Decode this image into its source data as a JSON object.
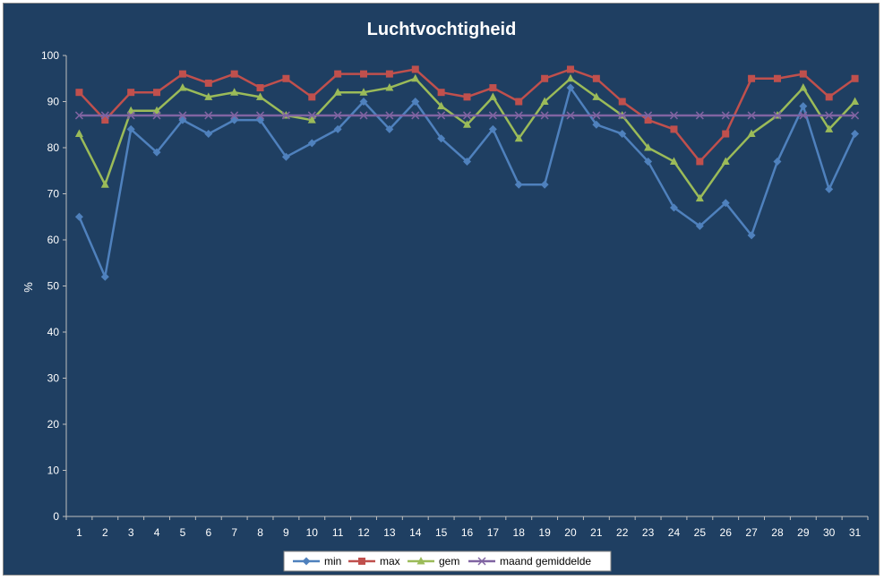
{
  "chart_data": {
    "type": "line",
    "title": "Luchtvochtigheid",
    "xlabel": "",
    "ylabel": "%",
    "ylim": [
      0,
      100
    ],
    "yticks": [
      0,
      10,
      20,
      30,
      40,
      50,
      60,
      70,
      80,
      90,
      100
    ],
    "categories": [
      "1",
      "2",
      "3",
      "4",
      "5",
      "6",
      "7",
      "8",
      "9",
      "10",
      "11",
      "12",
      "13",
      "14",
      "15",
      "16",
      "17",
      "18",
      "19",
      "20",
      "21",
      "22",
      "23",
      "24",
      "25",
      "26",
      "27",
      "28",
      "29",
      "30",
      "31"
    ],
    "legend_position": "bottom",
    "grid": false,
    "background_color": "#1f3f62",
    "series": [
      {
        "name": "min",
        "color": "#4f81bd",
        "marker": "diamond",
        "values": [
          65,
          52,
          84,
          79,
          86,
          83,
          86,
          86,
          78,
          81,
          84,
          90,
          84,
          90,
          82,
          77,
          84,
          72,
          72,
          93,
          85,
          83,
          77,
          67,
          63,
          68,
          61,
          77,
          89,
          71,
          83
        ]
      },
      {
        "name": "max",
        "color": "#c0504d",
        "marker": "square",
        "values": [
          92,
          86,
          92,
          92,
          96,
          94,
          96,
          93,
          95,
          91,
          96,
          96,
          96,
          97,
          92,
          91,
          93,
          90,
          95,
          97,
          95,
          90,
          86,
          84,
          77,
          83,
          95,
          95,
          96,
          91,
          95
        ]
      },
      {
        "name": "gem",
        "color": "#9bbb59",
        "marker": "triangle",
        "values": [
          83,
          72,
          88,
          88,
          93,
          91,
          92,
          91,
          87,
          86,
          92,
          92,
          93,
          95,
          89,
          85,
          91,
          82,
          90,
          95,
          91,
          87,
          80,
          77,
          69,
          77,
          83,
          87,
          93,
          84,
          90
        ]
      },
      {
        "name": "maand gemiddelde",
        "color": "#8064a2",
        "marker": "x",
        "values": [
          87,
          87,
          87,
          87,
          87,
          87,
          87,
          87,
          87,
          87,
          87,
          87,
          87,
          87,
          87,
          87,
          87,
          87,
          87,
          87,
          87,
          87,
          87,
          87,
          87,
          87,
          87,
          87,
          87,
          87,
          87
        ]
      }
    ]
  }
}
